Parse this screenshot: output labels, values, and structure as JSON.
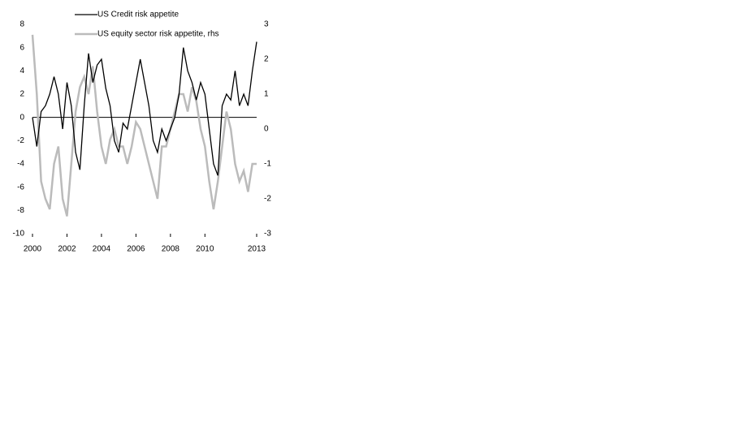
{
  "chart_data": {
    "type": "line",
    "x": [
      2000,
      2000.25,
      2000.5,
      2000.75,
      2001,
      2001.25,
      2001.5,
      2001.75,
      2002,
      2002.25,
      2002.5,
      2002.75,
      2003,
      2003.25,
      2003.5,
      2003.75,
      2004,
      2004.25,
      2004.5,
      2004.75,
      2005,
      2005.25,
      2005.5,
      2005.75,
      2006,
      2006.25,
      2006.5,
      2006.75,
      2007,
      2007.25,
      2007.5,
      2007.75,
      2008,
      2008.25,
      2008.5,
      2008.75,
      2009,
      2009.25,
      2009.5,
      2009.75,
      2010,
      2010.25,
      2010.5,
      2010.75,
      2011,
      2011.25,
      2011.5,
      2011.75,
      2012,
      2012.25,
      2012.5,
      2012.75,
      2013
    ],
    "series": [
      {
        "name": "US Credit risk appetite",
        "color": "#000000",
        "values": [
          0,
          -2.5,
          0.5,
          1,
          2,
          3.5,
          2,
          -1,
          3,
          1,
          -3,
          -4.5,
          1,
          5.5,
          3,
          4.5,
          5,
          2.5,
          1,
          -2,
          -3,
          -0.5,
          -1,
          1,
          3,
          5,
          3,
          1,
          -2,
          -3,
          -1,
          -2,
          -1,
          0,
          2,
          6,
          4,
          3,
          1.5,
          3,
          2,
          -1,
          -4,
          -5,
          1,
          2,
          1.5,
          4,
          1,
          2,
          1,
          4,
          6.5
        ]
      },
      {
        "name": "US equity sector risk appetite, rhs",
        "color": "#bbbbbb",
        "axis": "y2",
        "values": [
          2.7,
          1,
          -1.5,
          -2,
          -2.3,
          -1,
          -0.5,
          -2,
          -2.5,
          -1,
          0.5,
          1.2,
          1.5,
          1,
          1.8,
          0.5,
          -0.5,
          -1,
          -0.3,
          0,
          -0.5,
          -0.5,
          -1,
          -0.5,
          0.2,
          0,
          -0.5,
          -1,
          -1.5,
          -2,
          -0.5,
          -0.5,
          0,
          0.5,
          1,
          1,
          0.5,
          1.2,
          0.8,
          0,
          -0.5,
          -1.5,
          -2.3,
          -1.5,
          -0.5,
          0.5,
          0,
          -1,
          -1.5,
          -1.2,
          -1.8,
          -1,
          -1
        ]
      }
    ],
    "xlim": [
      2000,
      2013
    ],
    "xticks": [
      2000,
      2002,
      2004,
      2006,
      2008,
      2010,
      2013
    ],
    "ylim": [
      -10,
      8
    ],
    "yticks": [
      -10,
      -8,
      -6,
      -4,
      -2,
      0,
      2,
      4,
      6,
      8
    ],
    "y2lim": [
      -3,
      3
    ],
    "y2ticks": [
      -3,
      -2,
      -1,
      0,
      1,
      2,
      3
    ],
    "legend": "top"
  }
}
